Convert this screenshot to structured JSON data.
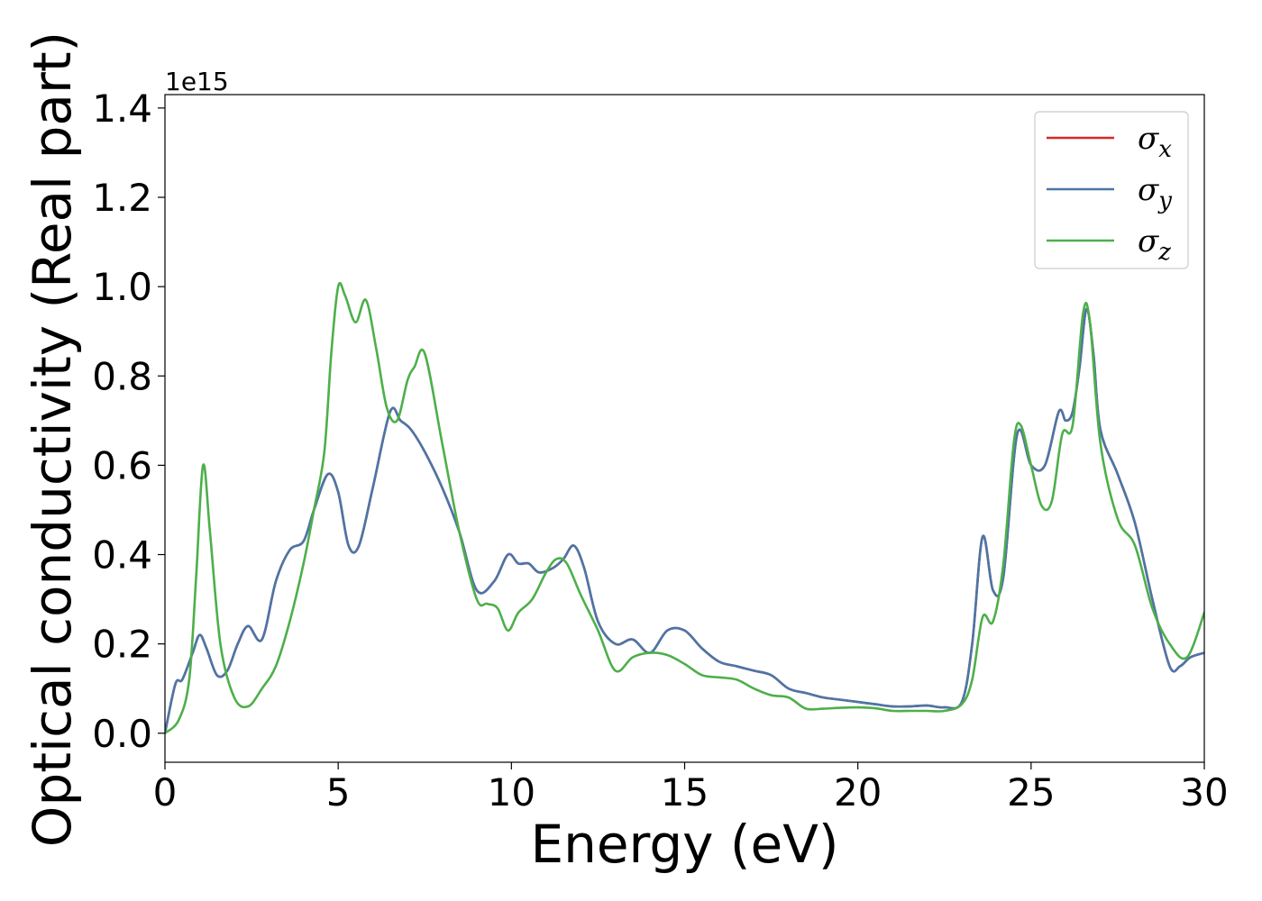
{
  "chart_data": {
    "type": "line",
    "xlabel": "Energy (eV)",
    "ylabel": "Optical conductivity (Real part)",
    "y_offset_text": "1e15",
    "xlim": [
      0,
      30
    ],
    "ylim": [
      -0.065,
      1.43
    ],
    "y_scale_factor": 1000000000000000.0,
    "x_ticks": [
      0,
      5,
      10,
      15,
      20,
      25,
      30
    ],
    "x_tick_labels": [
      "0",
      "5",
      "10",
      "15",
      "20",
      "25",
      "30"
    ],
    "y_ticks": [
      0.0,
      0.2,
      0.4,
      0.6,
      0.8,
      1.0,
      1.2,
      1.4
    ],
    "y_tick_labels": [
      "0.0",
      "0.2",
      "0.4",
      "0.6",
      "0.8",
      "1.0",
      "1.2",
      "1.4"
    ],
    "grid": false,
    "legend_position": "top-right",
    "series": [
      {
        "name": "σ_x",
        "label_base": "σ",
        "label_sub": "x",
        "color": "#d62728",
        "x": [
          0,
          0.3,
          0.5,
          0.8,
          1.0,
          1.2,
          1.5,
          1.8,
          2.1,
          2.4,
          2.8,
          3.2,
          3.6,
          4.0,
          4.3,
          4.7,
          5.0,
          5.3,
          5.6,
          6.0,
          6.5,
          6.8,
          7.1,
          7.5,
          8.0,
          8.5,
          9.0,
          9.5,
          9.9,
          10.2,
          10.5,
          10.8,
          11.2,
          11.5,
          11.8,
          12.1,
          12.5,
          13.0,
          13.5,
          14.0,
          14.5,
          15.0,
          15.5,
          16.0,
          16.5,
          17.0,
          17.5,
          18.0,
          18.5,
          19.0,
          19.5,
          20.0,
          20.5,
          21.0,
          21.5,
          22.0,
          22.5,
          23.0,
          23.3,
          23.6,
          23.9,
          24.2,
          24.6,
          25.0,
          25.4,
          25.8,
          26.0,
          26.2,
          26.4,
          26.6,
          26.8,
          27.0,
          27.5,
          28.0,
          28.5,
          29.0,
          29.3,
          29.6,
          30.0
        ],
        "y": [
          0.0,
          0.11,
          0.12,
          0.18,
          0.22,
          0.19,
          0.13,
          0.14,
          0.2,
          0.24,
          0.21,
          0.34,
          0.41,
          0.43,
          0.5,
          0.58,
          0.54,
          0.42,
          0.42,
          0.55,
          0.72,
          0.7,
          0.68,
          0.63,
          0.55,
          0.45,
          0.32,
          0.34,
          0.4,
          0.38,
          0.38,
          0.36,
          0.37,
          0.39,
          0.42,
          0.37,
          0.25,
          0.2,
          0.21,
          0.18,
          0.23,
          0.23,
          0.19,
          0.16,
          0.15,
          0.14,
          0.13,
          0.1,
          0.09,
          0.08,
          0.075,
          0.07,
          0.065,
          0.06,
          0.06,
          0.062,
          0.058,
          0.07,
          0.2,
          0.44,
          0.32,
          0.35,
          0.67,
          0.6,
          0.6,
          0.72,
          0.7,
          0.72,
          0.82,
          0.95,
          0.85,
          0.68,
          0.58,
          0.47,
          0.3,
          0.15,
          0.15,
          0.17,
          0.18
        ]
      },
      {
        "name": "σ_y",
        "label_base": "σ",
        "label_sub": "y",
        "color": "#4a76a8",
        "x": [
          0,
          0.3,
          0.5,
          0.8,
          1.0,
          1.2,
          1.5,
          1.8,
          2.1,
          2.4,
          2.8,
          3.2,
          3.6,
          4.0,
          4.3,
          4.7,
          5.0,
          5.3,
          5.6,
          6.0,
          6.5,
          6.8,
          7.1,
          7.5,
          8.0,
          8.5,
          9.0,
          9.5,
          9.9,
          10.2,
          10.5,
          10.8,
          11.2,
          11.5,
          11.8,
          12.1,
          12.5,
          13.0,
          13.5,
          14.0,
          14.5,
          15.0,
          15.5,
          16.0,
          16.5,
          17.0,
          17.5,
          18.0,
          18.5,
          19.0,
          19.5,
          20.0,
          20.5,
          21.0,
          21.5,
          22.0,
          22.5,
          23.0,
          23.3,
          23.6,
          23.9,
          24.2,
          24.6,
          25.0,
          25.4,
          25.8,
          26.0,
          26.2,
          26.4,
          26.6,
          26.8,
          27.0,
          27.5,
          28.0,
          28.5,
          29.0,
          29.3,
          29.6,
          30.0
        ],
        "y": [
          0.0,
          0.11,
          0.12,
          0.18,
          0.22,
          0.19,
          0.13,
          0.14,
          0.2,
          0.24,
          0.21,
          0.34,
          0.41,
          0.43,
          0.5,
          0.58,
          0.54,
          0.42,
          0.42,
          0.55,
          0.72,
          0.7,
          0.68,
          0.63,
          0.55,
          0.45,
          0.32,
          0.34,
          0.4,
          0.38,
          0.38,
          0.36,
          0.37,
          0.39,
          0.42,
          0.37,
          0.25,
          0.2,
          0.21,
          0.18,
          0.23,
          0.23,
          0.19,
          0.16,
          0.15,
          0.14,
          0.13,
          0.1,
          0.09,
          0.08,
          0.075,
          0.07,
          0.065,
          0.06,
          0.06,
          0.062,
          0.058,
          0.07,
          0.2,
          0.44,
          0.32,
          0.35,
          0.67,
          0.6,
          0.6,
          0.72,
          0.7,
          0.72,
          0.82,
          0.95,
          0.85,
          0.68,
          0.58,
          0.47,
          0.3,
          0.15,
          0.15,
          0.17,
          0.18
        ]
      },
      {
        "name": "σ_z",
        "label_base": "σ",
        "label_sub": "z",
        "color": "#4daf4a",
        "x": [
          0,
          0.4,
          0.7,
          0.9,
          1.1,
          1.3,
          1.6,
          2.0,
          2.4,
          2.8,
          3.2,
          3.6,
          4.0,
          4.3,
          4.6,
          4.8,
          5.0,
          5.2,
          5.5,
          5.8,
          6.1,
          6.4,
          6.7,
          7.0,
          7.2,
          7.5,
          8.0,
          8.5,
          9.0,
          9.3,
          9.6,
          9.9,
          10.2,
          10.6,
          11.0,
          11.3,
          11.6,
          12.0,
          12.5,
          13.0,
          13.5,
          14.0,
          14.5,
          15.0,
          15.5,
          16.0,
          16.5,
          17.0,
          17.5,
          18.0,
          18.5,
          19.0,
          19.5,
          20.0,
          20.5,
          21.0,
          21.5,
          22.0,
          22.5,
          23.0,
          23.3,
          23.6,
          23.9,
          24.2,
          24.5,
          24.7,
          25.0,
          25.3,
          25.6,
          25.9,
          26.2,
          26.5,
          26.7,
          27.0,
          27.5,
          28.0,
          28.5,
          29.0,
          29.5,
          30.0
        ],
        "y": [
          0.0,
          0.03,
          0.12,
          0.35,
          0.6,
          0.45,
          0.2,
          0.08,
          0.06,
          0.1,
          0.15,
          0.25,
          0.38,
          0.5,
          0.63,
          0.85,
          1.0,
          0.98,
          0.92,
          0.97,
          0.86,
          0.73,
          0.7,
          0.79,
          0.82,
          0.85,
          0.65,
          0.45,
          0.3,
          0.29,
          0.28,
          0.23,
          0.27,
          0.3,
          0.36,
          0.39,
          0.38,
          0.31,
          0.23,
          0.14,
          0.17,
          0.18,
          0.175,
          0.155,
          0.13,
          0.125,
          0.12,
          0.1,
          0.085,
          0.08,
          0.055,
          0.055,
          0.057,
          0.058,
          0.056,
          0.05,
          0.05,
          0.05,
          0.05,
          0.065,
          0.12,
          0.26,
          0.25,
          0.38,
          0.65,
          0.69,
          0.6,
          0.51,
          0.52,
          0.67,
          0.69,
          0.94,
          0.92,
          0.65,
          0.48,
          0.42,
          0.28,
          0.2,
          0.17,
          0.27
        ]
      }
    ]
  }
}
